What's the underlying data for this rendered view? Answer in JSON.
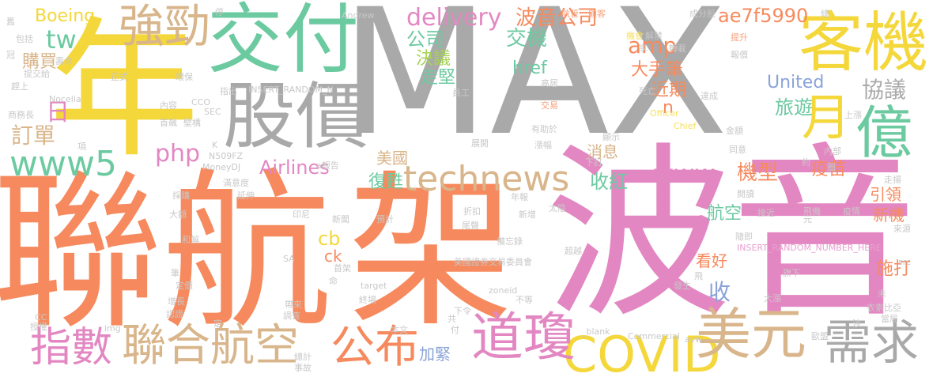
{
  "colors": {
    "gray": "#a9a9a9",
    "yellow": "#f4d73a",
    "orange": "#f68a5e",
    "pink": "#e387c2",
    "teal": "#6ccaa1",
    "tan": "#d8b58a",
    "blue": "#8aa3d8",
    "green": "#a6d356",
    "ltgray": "#c8c8c8",
    "ltyellow": "#f6df60",
    "ltpink": "#e8a0cf",
    "ltorange": "#f8a07a"
  },
  "words": [
    {
      "id": "w-max",
      "text": "MAX",
      "color": "gray"
    },
    {
      "id": "w-nian",
      "text": "年",
      "color": "yellow"
    },
    {
      "id": "w-lianhang",
      "text": "聯航",
      "color": "orange"
    },
    {
      "id": "w-jia",
      "text": "架",
      "color": "orange"
    },
    {
      "id": "w-boyin",
      "text": "波音",
      "color": "pink"
    },
    {
      "id": "w-jiaofu",
      "text": "交付",
      "color": "teal"
    },
    {
      "id": "w-keji",
      "text": "客機",
      "color": "yellow"
    },
    {
      "id": "w-gujia",
      "text": "股價",
      "color": "gray"
    },
    {
      "id": "w-yi",
      "text": "億",
      "color": "teal"
    },
    {
      "id": "w-yue",
      "text": "月",
      "color": "yellow"
    },
    {
      "id": "w-qiangjin",
      "text": "強勁",
      "color": "tan"
    },
    {
      "id": "w-www5",
      "text": "www5",
      "color": "teal"
    },
    {
      "id": "w-technews",
      "text": "technews",
      "color": "tan"
    },
    {
      "id": "w-covid",
      "text": "COVID",
      "color": "yellow"
    },
    {
      "id": "w-meiyuan",
      "text": "美元",
      "color": "tan"
    },
    {
      "id": "w-xuqiu",
      "text": "需求",
      "color": "gray"
    },
    {
      "id": "w-daoqiong",
      "text": "道瓊",
      "color": "pink"
    },
    {
      "id": "w-gongbu",
      "text": "公布",
      "color": "orange"
    },
    {
      "id": "w-lianhehangkong",
      "text": "聯合航空",
      "color": "tan"
    },
    {
      "id": "w-zhishu",
      "text": "指數",
      "color": "pink"
    },
    {
      "id": "w-delivery",
      "text": "delivery",
      "color": "pink"
    },
    {
      "id": "w-bogonsi",
      "text": "波音公司",
      "color": "orange"
    },
    {
      "id": "w-ae7f",
      "text": "ae7f5990",
      "color": "orange"
    },
    {
      "id": "w-boeing",
      "text": "Boeing",
      "color": "yellow"
    },
    {
      "id": "w-tw",
      "text": "tw",
      "color": "teal"
    },
    {
      "id": "w-goumai",
      "text": "購買",
      "color": "tan"
    },
    {
      "id": "w-ri",
      "text": "日",
      "color": "pink"
    },
    {
      "id": "w-dingdan",
      "text": "訂單",
      "color": "tan"
    },
    {
      "id": "w-php",
      "text": "php",
      "color": "pink"
    },
    {
      "id": "w-airlines",
      "text": "Airlines",
      "color": "pink"
    },
    {
      "id": "w-gongsi",
      "text": "公司",
      "color": "teal"
    },
    {
      "id": "w-jueyi",
      "text": "決議",
      "color": "green"
    },
    {
      "id": "w-zoujian",
      "text": "走堅",
      "color": "teal"
    },
    {
      "id": "w-jiaoji",
      "text": "交機",
      "color": "teal"
    },
    {
      "id": "w-href",
      "text": "href",
      "color": "teal"
    },
    {
      "id": "w-amp",
      "text": "amp",
      "color": "orange"
    },
    {
      "id": "w-dashoubi",
      "text": "大手筆",
      "color": "orange"
    },
    {
      "id": "w-jinqi",
      "text": "近期",
      "color": "orange"
    },
    {
      "id": "w-united",
      "text": "United",
      "color": "blue"
    },
    {
      "id": "w-xieyi",
      "text": "協議",
      "color": "gray"
    },
    {
      "id": "w-lvyou",
      "text": "旅遊",
      "color": "teal"
    },
    {
      "id": "w-n",
      "text": "n",
      "color": "orange"
    },
    {
      "id": "w-www",
      "text": "www",
      "color": "pink"
    },
    {
      "id": "w-jixing",
      "text": "機型",
      "color": "orange"
    },
    {
      "id": "w-yimiao",
      "text": "疫苗",
      "color": "orange"
    },
    {
      "id": "w-xiaoxi",
      "text": "消息",
      "color": "tan"
    },
    {
      "id": "w-meiguo",
      "text": "美國",
      "color": "tan"
    },
    {
      "id": "w-fusu",
      "text": "復甦",
      "color": "teal"
    },
    {
      "id": "w-shouhong",
      "text": "收紅",
      "color": "teal"
    },
    {
      "id": "w-hangkong",
      "text": "航空",
      "color": "teal"
    },
    {
      "id": "w-shou",
      "text": "收",
      "color": "blue"
    },
    {
      "id": "w-kanhao",
      "text": "看好",
      "color": "orange"
    },
    {
      "id": "w-yinling",
      "text": "引領",
      "color": "orange"
    },
    {
      "id": "w-xinji",
      "text": "新機",
      "color": "orange"
    },
    {
      "id": "w-shida",
      "text": "施打",
      "color": "orange"
    },
    {
      "id": "w-cb",
      "text": "cb",
      "color": "yellow"
    },
    {
      "id": "w-ck",
      "text": "ck",
      "color": "orange"
    },
    {
      "id": "w-jiajin",
      "text": "加緊",
      "color": "blue"
    },
    {
      "id": "w-s1",
      "text": "Andrew",
      "color": "ltgray"
    },
    {
      "id": "w-s2",
      "text": "航管",
      "color": "ltorange"
    },
    {
      "id": "w-s3",
      "text": "顧客",
      "color": "ltorange"
    },
    {
      "id": "w-s4",
      "text": "成分股",
      "color": "ltgray"
    },
    {
      "id": "w-s5",
      "text": "機會",
      "color": "ltyellow"
    },
    {
      "id": "w-s6",
      "text": "解禁",
      "color": "ltgray"
    },
    {
      "id": "w-s7",
      "text": "提升",
      "color": "ltorange"
    },
    {
      "id": "w-s8",
      "text": "報價",
      "color": "ltgray"
    },
    {
      "id": "w-s9",
      "text": "享",
      "color": "ltgray"
    },
    {
      "id": "w-s10",
      "text": "轉載",
      "color": "ltgray"
    },
    {
      "id": "w-s11",
      "text": "高居",
      "color": "ltgray"
    },
    {
      "id": "w-s12",
      "text": "死亡",
      "color": "ltgray"
    },
    {
      "id": "w-s13",
      "text": "員工",
      "color": "ltgray"
    },
    {
      "id": "w-s14",
      "text": "達成",
      "color": "ltgray"
    },
    {
      "id": "w-s15",
      "text": "交易",
      "color": "ltorange"
    },
    {
      "id": "w-s16",
      "text": "Officer",
      "color": "ltyellow"
    },
    {
      "id": "w-s17",
      "text": "Chief",
      "color": "ltyellow"
    },
    {
      "id": "w-s18",
      "text": "有助於",
      "color": "ltgray"
    },
    {
      "id": "w-s19",
      "text": "展開",
      "color": "ltgray"
    },
    {
      "id": "w-s20",
      "text": "漲幅",
      "color": "ltgray"
    },
    {
      "id": "w-s21",
      "text": "顯示",
      "color": "ltgray"
    },
    {
      "id": "w-s22",
      "text": "金額",
      "color": "ltgray"
    },
    {
      "id": "w-s23",
      "text": "同意",
      "color": "ltgray"
    },
    {
      "id": "w-s24",
      "text": "下訂",
      "color": "ltgray"
    },
    {
      "id": "w-s25",
      "text": "內部",
      "color": "ltgray"
    },
    {
      "id": "w-s26",
      "text": "約",
      "color": "ltgray"
    },
    {
      "id": "w-s27",
      "text": "上漲",
      "color": "ltgray"
    },
    {
      "id": "w-s28",
      "text": "走揚",
      "color": "ltgray"
    },
    {
      "id": "w-s29",
      "text": "閱讀",
      "color": "ltgray"
    },
    {
      "id": "w-s30",
      "text": "接近",
      "color": "ltgray"
    },
    {
      "id": "w-s31",
      "text": "飛機",
      "color": "ltgray"
    },
    {
      "id": "w-s32",
      "text": "疫情",
      "color": "ltgray"
    },
    {
      "id": "w-s33",
      "text": "來源",
      "color": "ltgray"
    },
    {
      "id": "w-s34",
      "text": "隨即",
      "color": "ltgray"
    },
    {
      "id": "w-s35",
      "text": "INSERT_RANDOM_NUMBER_HERE",
      "color": "ltpink"
    },
    {
      "id": "w-s36",
      "text": "src",
      "color": "ltgray"
    },
    {
      "id": "w-s37",
      "text": "旗下",
      "color": "ltgray"
    },
    {
      "id": "w-s38",
      "text": "未",
      "color": "ltgray"
    },
    {
      "id": "w-s39",
      "text": "大漲",
      "color": "ltgray"
    },
    {
      "id": "w-s40",
      "text": "衣索比亞",
      "color": "ltgray"
    },
    {
      "id": "w-s41",
      "text": "當局",
      "color": "ltgray"
    },
    {
      "id": "w-s42",
      "text": "歐盟",
      "color": "ltgray"
    },
    {
      "id": "w-s43",
      "text": "涉",
      "color": "ltgray"
    },
    {
      "id": "w-s44",
      "text": "發生",
      "color": "ltgray"
    },
    {
      "id": "w-s45",
      "text": "飛",
      "color": "ltgray"
    },
    {
      "id": "w-s46",
      "text": "avw",
      "color": "ltgray"
    },
    {
      "id": "w-s47",
      "text": "Commercial",
      "color": "ltgray"
    },
    {
      "id": "w-s48",
      "text": "_blank",
      "color": "ltgray"
    },
    {
      "id": "w-s49",
      "text": "不等",
      "color": "ltgray"
    },
    {
      "id": "w-s50",
      "text": "zoneid",
      "color": "ltgray"
    },
    {
      "id": "w-s51",
      "text": "超越",
      "color": "ltgray"
    },
    {
      "id": "w-s52",
      "text": "備忘錄",
      "color": "ltgray"
    },
    {
      "id": "w-s53",
      "text": "美國證券交易委員會",
      "color": "ltgray"
    },
    {
      "id": "w-s54",
      "text": "下令",
      "color": "ltgray"
    },
    {
      "id": "w-s55",
      "text": "target",
      "color": "ltgray"
    },
    {
      "id": "w-s56",
      "text": "終場",
      "color": "ltgray"
    },
    {
      "id": "w-s57",
      "text": "本文",
      "color": "ltgray"
    },
    {
      "id": "w-s58",
      "text": "共",
      "color": "ltgray"
    },
    {
      "id": "w-s59",
      "text": "付",
      "color": "ltgray"
    },
    {
      "id": "w-s60",
      "text": "首架",
      "color": "ltgray"
    },
    {
      "id": "w-s61",
      "text": "命",
      "color": "ltgray"
    },
    {
      "id": "w-s62",
      "text": "帶來",
      "color": "ltgray"
    },
    {
      "id": "w-s63",
      "text": "調查",
      "color": "ltgray"
    },
    {
      "id": "w-s64",
      "text": "總計",
      "color": "ltgray"
    },
    {
      "id": "w-s65",
      "text": "事故",
      "color": "ltgray"
    },
    {
      "id": "w-s66",
      "text": "SA",
      "color": "ltgray"
    },
    {
      "id": "w-s67",
      "text": "印尼",
      "color": "ltgray"
    },
    {
      "id": "w-s68",
      "text": "新聞",
      "color": "ltgray"
    },
    {
      "id": "w-s69",
      "text": "預計",
      "color": "ltgray"
    },
    {
      "id": "w-s70",
      "text": "尾聲",
      "color": "ltgray"
    },
    {
      "id": "w-s71",
      "text": "折扣",
      "color": "ltgray"
    },
    {
      "id": "w-s72",
      "text": "新增",
      "color": "ltgray"
    },
    {
      "id": "w-s73",
      "text": "太陰",
      "color": "ltgray"
    },
    {
      "id": "w-s74",
      "text": "年報",
      "color": "ltgray"
    },
    {
      "id": "w-s75",
      "text": "延伸",
      "color": "ltgray"
    },
    {
      "id": "w-s76",
      "text": "滿意度",
      "color": "ltgray"
    },
    {
      "id": "w-s77",
      "text": "a報告",
      "color": "ltgray"
    },
    {
      "id": "w-s78",
      "text": "MoneyDJ",
      "color": "ltgray"
    },
    {
      "id": "w-s79",
      "text": "N509FZ",
      "color": "ltgray"
    },
    {
      "id": "w-s80",
      "text": "K",
      "color": "ltgray"
    },
    {
      "id": "w-s81",
      "text": "SEC",
      "color": "ltgray"
    },
    {
      "id": "w-s82",
      "text": "CCO",
      "color": "ltgray"
    },
    {
      "id": "w-s83",
      "text": "首飆",
      "color": "ltgray"
    },
    {
      "id": "w-s84",
      "text": "內容",
      "color": "ltgray"
    },
    {
      "id": "w-s85",
      "text": "指出",
      "color": "ltgray"
    },
    {
      "id": "w-s86",
      "text": "INSERT_RANDOM_N",
      "color": "ltgray"
    },
    {
      "id": "w-s87",
      "text": "壁構",
      "color": "ltgray"
    },
    {
      "id": "w-s88",
      "text": "環保",
      "color": "ltgray"
    },
    {
      "id": "w-s89",
      "text": "正式",
      "color": "ltgray"
    },
    {
      "id": "w-s90",
      "text": "Nocella",
      "color": "ltgray"
    },
    {
      "id": "w-s91",
      "text": "商務長",
      "color": "ltgray"
    },
    {
      "id": "w-s92",
      "text": "趕上",
      "color": "ltgray"
    },
    {
      "id": "w-s93",
      "text": "壽命",
      "color": "ltgray"
    },
    {
      "id": "w-s94",
      "text": "提交給",
      "color": "ltgray"
    },
    {
      "id": "w-s95",
      "text": "冠",
      "color": "ltgray"
    },
    {
      "id": "w-s96",
      "text": "包括",
      "color": "ltgray"
    },
    {
      "id": "w-s97",
      "text": "舊",
      "color": "ltgray"
    },
    {
      "id": "w-s98",
      "text": "停",
      "color": "ltgray"
    },
    {
      "id": "w-s99",
      "text": "採購",
      "color": "ltgray"
    },
    {
      "id": "w-s100",
      "text": "大額",
      "color": "ltgray"
    },
    {
      "id": "w-s101",
      "text": "和解",
      "color": "ltgray"
    },
    {
      "id": "w-s102",
      "text": "筆",
      "color": "ltgray"
    },
    {
      "id": "w-s103",
      "text": "定價",
      "color": "ltgray"
    },
    {
      "id": "w-s104",
      "text": "增長",
      "color": "ltgray"
    },
    {
      "id": "w-s105",
      "text": "認證",
      "color": "ltgray"
    },
    {
      "id": "w-s106",
      "text": "定",
      "color": "ltgray"
    },
    {
      "id": "w-s107",
      "text": "CC",
      "color": "ltgray"
    },
    {
      "id": "w-s108",
      "text": "授權",
      "color": "ltgray"
    },
    {
      "id": "w-s109",
      "text": "img",
      "color": "ltgray"
    },
    {
      "id": "w-s110",
      "text": "項",
      "color": "ltgray"
    },
    {
      "id": "w-s111",
      "text": "總",
      "color": "ltgray"
    },
    {
      "id": "w-s112",
      "text": "元",
      "color": "ltgray"
    },
    {
      "id": "w-s113",
      "text": "圈",
      "color": "ltgray"
    }
  ]
}
